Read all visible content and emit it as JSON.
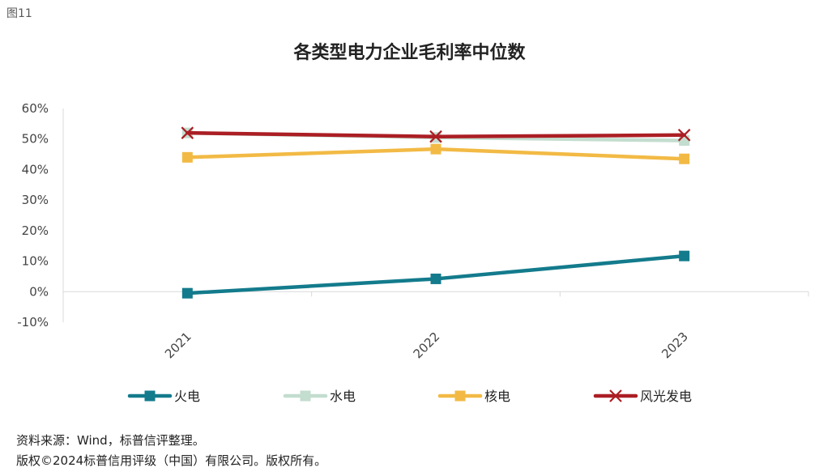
{
  "figure_label": "图11",
  "chart_data": {
    "type": "line",
    "title": "各类型电力企业毛利率中位数",
    "x": [
      "2021",
      "2022",
      "2023"
    ],
    "ylim": [
      -10,
      60
    ],
    "yticks": [
      -10,
      0,
      10,
      20,
      30,
      40,
      50,
      60
    ],
    "ytick_suffix": "%",
    "grid": false,
    "legend_position": "bottom",
    "series": [
      {
        "name": "火电",
        "values": [
          -0.5,
          4.2,
          11.7
        ],
        "color": "#137B8C",
        "marker": "square"
      },
      {
        "name": "水电",
        "values": [
          52.0,
          50.5,
          49.5
        ],
        "color": "#C3DDCF",
        "marker": "square"
      },
      {
        "name": "核电",
        "values": [
          44.0,
          46.7,
          43.5
        ],
        "color": "#F2BA45",
        "marker": "square"
      },
      {
        "name": "风光发电",
        "values": [
          52.0,
          50.8,
          51.3
        ],
        "color": "#AB1E24",
        "marker": "x"
      }
    ]
  },
  "notes": {
    "source": "资料来源：Wind，标普信评整理。",
    "copyright": "版权©2024标普信用评级（中国）有限公司。版权所有。"
  }
}
